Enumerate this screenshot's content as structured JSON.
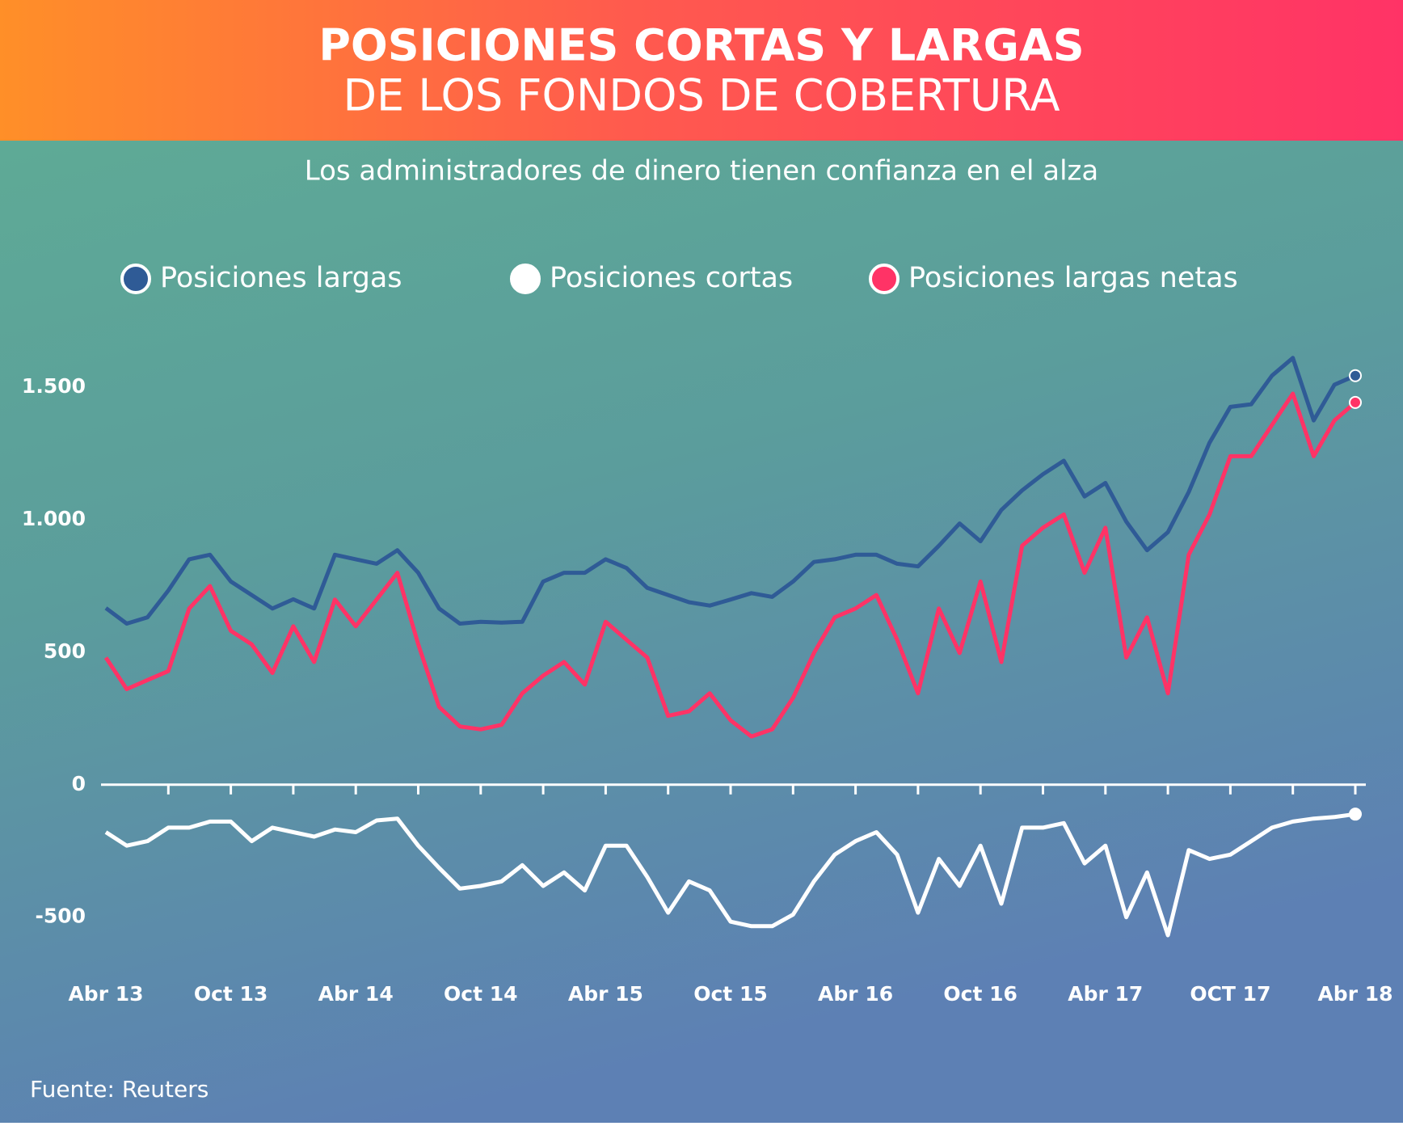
{
  "chart_data": {
    "type": "line",
    "title": "POSICIONES CORTAS Y LARGAS",
    "title_line2": "DE LOS FONDOS DE COBERTURA",
    "subtitle": "Los administradores de dinero tienen confianza en el alza",
    "source": "Fuente: Reuters",
    "categories": [
      "Abr 13",
      null,
      null,
      null,
      null,
      null,
      "Oct 13",
      null,
      null,
      null,
      null,
      null,
      "Abr 14",
      null,
      null,
      null,
      null,
      null,
      "Oct 14",
      null,
      null,
      null,
      null,
      null,
      "Abr 15",
      null,
      null,
      null,
      null,
      null,
      "Oct 15",
      null,
      null,
      null,
      null,
      null,
      "Abr 16",
      null,
      null,
      null,
      null,
      null,
      "Oct 16",
      null,
      null,
      null,
      null,
      null,
      "Abr 17",
      null,
      null,
      null,
      null,
      null,
      "OCT 17",
      null,
      null,
      null,
      null,
      null,
      "Abr 18"
    ],
    "series": [
      {
        "name": "Posiciones largas",
        "color": "#2f5b96",
        "values": [
          667,
          608,
          632,
          733,
          851,
          868,
          767,
          716,
          665,
          700,
          665,
          868,
          851,
          834,
          885,
          800,
          665,
          608,
          615,
          612,
          615,
          767,
          800,
          800,
          851,
          818,
          743,
          716,
          689,
          676,
          699,
          723,
          709,
          767,
          841,
          851,
          868,
          868,
          834,
          824,
          902,
          986,
          919,
          1037,
          1111,
          1172,
          1223,
          1088,
          1139,
          993,
          885,
          953,
          1105,
          1291,
          1426,
          1436,
          1544,
          1611,
          1375,
          1510,
          1544
        ]
      },
      {
        "name": "Posiciones cortas",
        "color": "#ffffff",
        "values": [
          -179,
          -230,
          -213,
          -162,
          -162,
          -139,
          -139,
          -213,
          -162,
          -179,
          -196,
          -169,
          -179,
          -135,
          -128,
          -230,
          -314,
          -392,
          -382,
          -365,
          -304,
          -382,
          -331,
          -399,
          -230,
          -230,
          -348,
          -483,
          -365,
          -399,
          -517,
          -534,
          -534,
          -490,
          -365,
          -264,
          -213,
          -179,
          -264,
          -483,
          -280,
          -382,
          -230,
          -449,
          -162,
          -162,
          -145,
          -297,
          -230,
          -500,
          -331,
          -568,
          -247,
          -280,
          -264,
          -213,
          -162,
          -139,
          -128,
          -122,
          -111
        ]
      },
      {
        "name": "Posiciones largas netas",
        "color": "#ff3366",
        "values": [
          480,
          361,
          395,
          429,
          665,
          750,
          581,
          530,
          422,
          598,
          463,
          699,
          598,
          699,
          800,
          530,
          294,
          220,
          209,
          226,
          345,
          412,
          463,
          378,
          615,
          547,
          480,
          260,
          277,
          345,
          243,
          182,
          209,
          328,
          497,
          632,
          665,
          716,
          547,
          345,
          665,
          497,
          767,
          463,
          902,
          970,
          1020,
          800,
          970,
          480,
          632,
          345,
          868,
          1020,
          1240,
          1240,
          1358,
          1476,
          1240,
          1375,
          1443
        ]
      }
    ],
    "ylim": [
      -620,
      1650
    ],
    "yticks": [
      -500,
      0,
      500,
      {
        "value": 1000,
        "label": "1.000"
      },
      {
        "value": 1500,
        "label": "1.500"
      }
    ]
  }
}
